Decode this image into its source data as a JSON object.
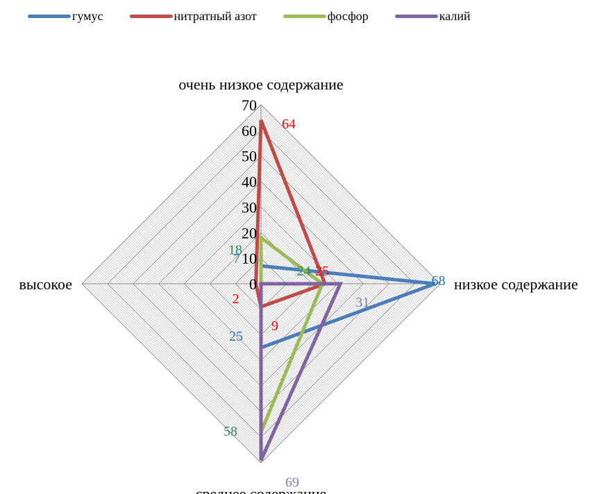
{
  "chart_data": {
    "type": "radar",
    "axes": [
      "очень низкое содержание",
      "низкое содержание",
      "среднее содержание",
      "высокое"
    ],
    "rmax": 70,
    "ticks": [
      0,
      10,
      20,
      30,
      40,
      50,
      60,
      70
    ],
    "legend_position": "top",
    "series": [
      {
        "name": "гумус",
        "color": "#4A7EBB",
        "label_color": "#1F6EC0",
        "values": [
          7,
          68,
          25,
          0
        ],
        "labels": [
          "7",
          "68",
          "25",
          ""
        ]
      },
      {
        "name": "нитратный азот",
        "color": "#BE4B48",
        "label_color": "#FF0000",
        "values": [
          64,
          25,
          9,
          2
        ],
        "labels": [
          "64",
          "25",
          "9",
          "2"
        ]
      },
      {
        "name": "фосфор",
        "color": "#9BBB59",
        "label_color": "#2E8B57",
        "values": [
          18,
          24,
          58,
          0
        ],
        "labels": [
          "18",
          "24",
          "58",
          ""
        ]
      },
      {
        "name": "калий",
        "color": "#7F63A0",
        "label_color": "#7F7FB0",
        "values": [
          0,
          31,
          69,
          0
        ],
        "labels": [
          "",
          "31",
          "69",
          ""
        ]
      }
    ]
  }
}
